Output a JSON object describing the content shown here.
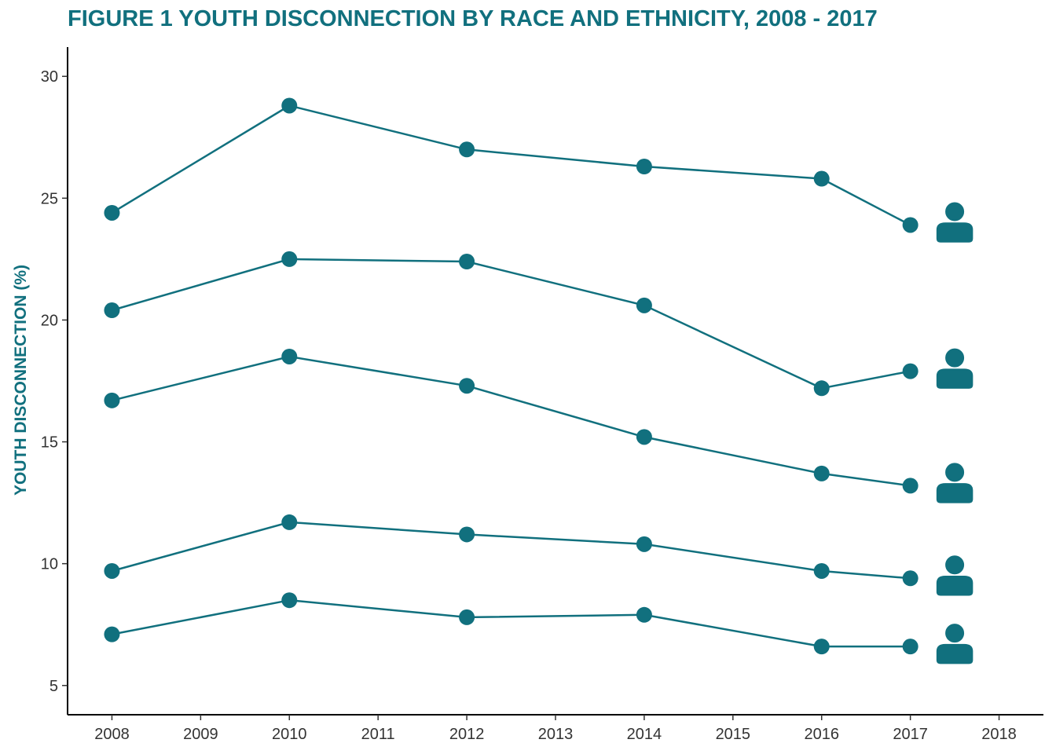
{
  "chart_data": {
    "type": "line",
    "title": "FIGURE 1 YOUTH DISCONNECTION BY RACE AND ETHNICITY, 2008 - 2017",
    "xlabel": "",
    "ylabel": "YOUTH DISCONNECTION (%)",
    "xlim": [
      2007.5,
      2018.5
    ],
    "ylim": [
      3.8,
      31.2
    ],
    "x_ticks": [
      2008,
      2009,
      2010,
      2011,
      2012,
      2013,
      2014,
      2015,
      2016,
      2017,
      2018
    ],
    "y_ticks": [
      5,
      10,
      15,
      20,
      25,
      30
    ],
    "x": [
      2008,
      2010,
      2012,
      2014,
      2016,
      2017
    ],
    "grid": false,
    "legend": "none",
    "series": [
      {
        "values": [
          24.4,
          28.8,
          27.0,
          26.3,
          25.8,
          23.9
        ]
      },
      {
        "values": [
          20.4,
          22.5,
          22.4,
          20.6,
          17.2,
          17.9
        ]
      },
      {
        "values": [
          16.7,
          18.5,
          17.3,
          15.2,
          13.7,
          13.2
        ]
      },
      {
        "values": [
          9.7,
          11.7,
          11.2,
          10.8,
          9.7,
          9.4
        ]
      },
      {
        "values": [
          7.1,
          8.5,
          7.8,
          7.9,
          6.6,
          6.6
        ]
      }
    ],
    "marker_icon": "person-icon",
    "color": "#11707e"
  }
}
